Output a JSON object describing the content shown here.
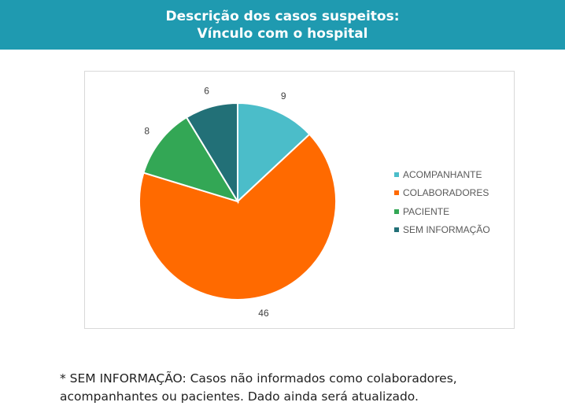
{
  "header": {
    "title_line1": "Descrição dos casos suspeitos:",
    "title_line2": "Vínculo com o hospital"
  },
  "chart_data": {
    "type": "pie",
    "categories": [
      "ACOMPANHANTE",
      "COLABORADORES",
      "PACIENTE",
      "SEM INFORMAÇÃO"
    ],
    "values": [
      9,
      46,
      8,
      6
    ],
    "colors": [
      "#4bbdc9",
      "#ff6a00",
      "#33a755",
      "#227077"
    ],
    "legend_position": "right"
  },
  "footnote": {
    "line1": "* SEM INFORMAÇÃO: Casos não informados como colaboradores,",
    "line2": "acompanhantes ou pacientes. Dado ainda será atualizado."
  }
}
